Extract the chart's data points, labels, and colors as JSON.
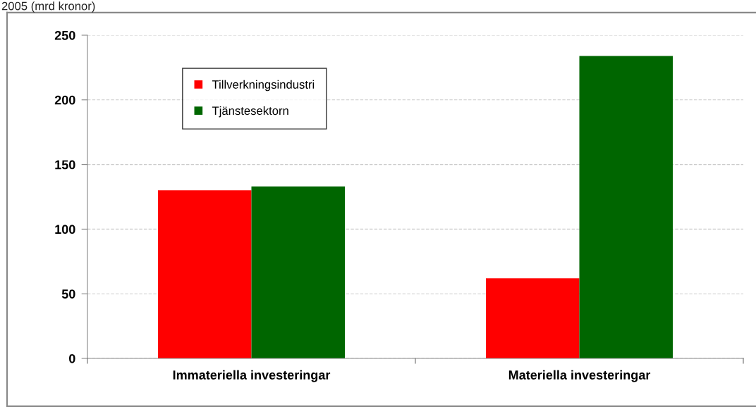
{
  "chart_data": {
    "type": "bar",
    "title": "2005 (mrd kronor)",
    "categories": [
      "Immateriella investeringar",
      "Materiella investeringar"
    ],
    "series": [
      {
        "name": "Tillverkningsindustri",
        "color": "#ff0000",
        "values": [
          130,
          62
        ]
      },
      {
        "name": "Tjänstesektorn",
        "color": "#006600",
        "values": [
          133,
          234
        ]
      }
    ],
    "ylim": [
      0,
      250
    ],
    "yticks": [
      0,
      50,
      100,
      150,
      200,
      250
    ],
    "grid": "y",
    "legend": "top left"
  }
}
